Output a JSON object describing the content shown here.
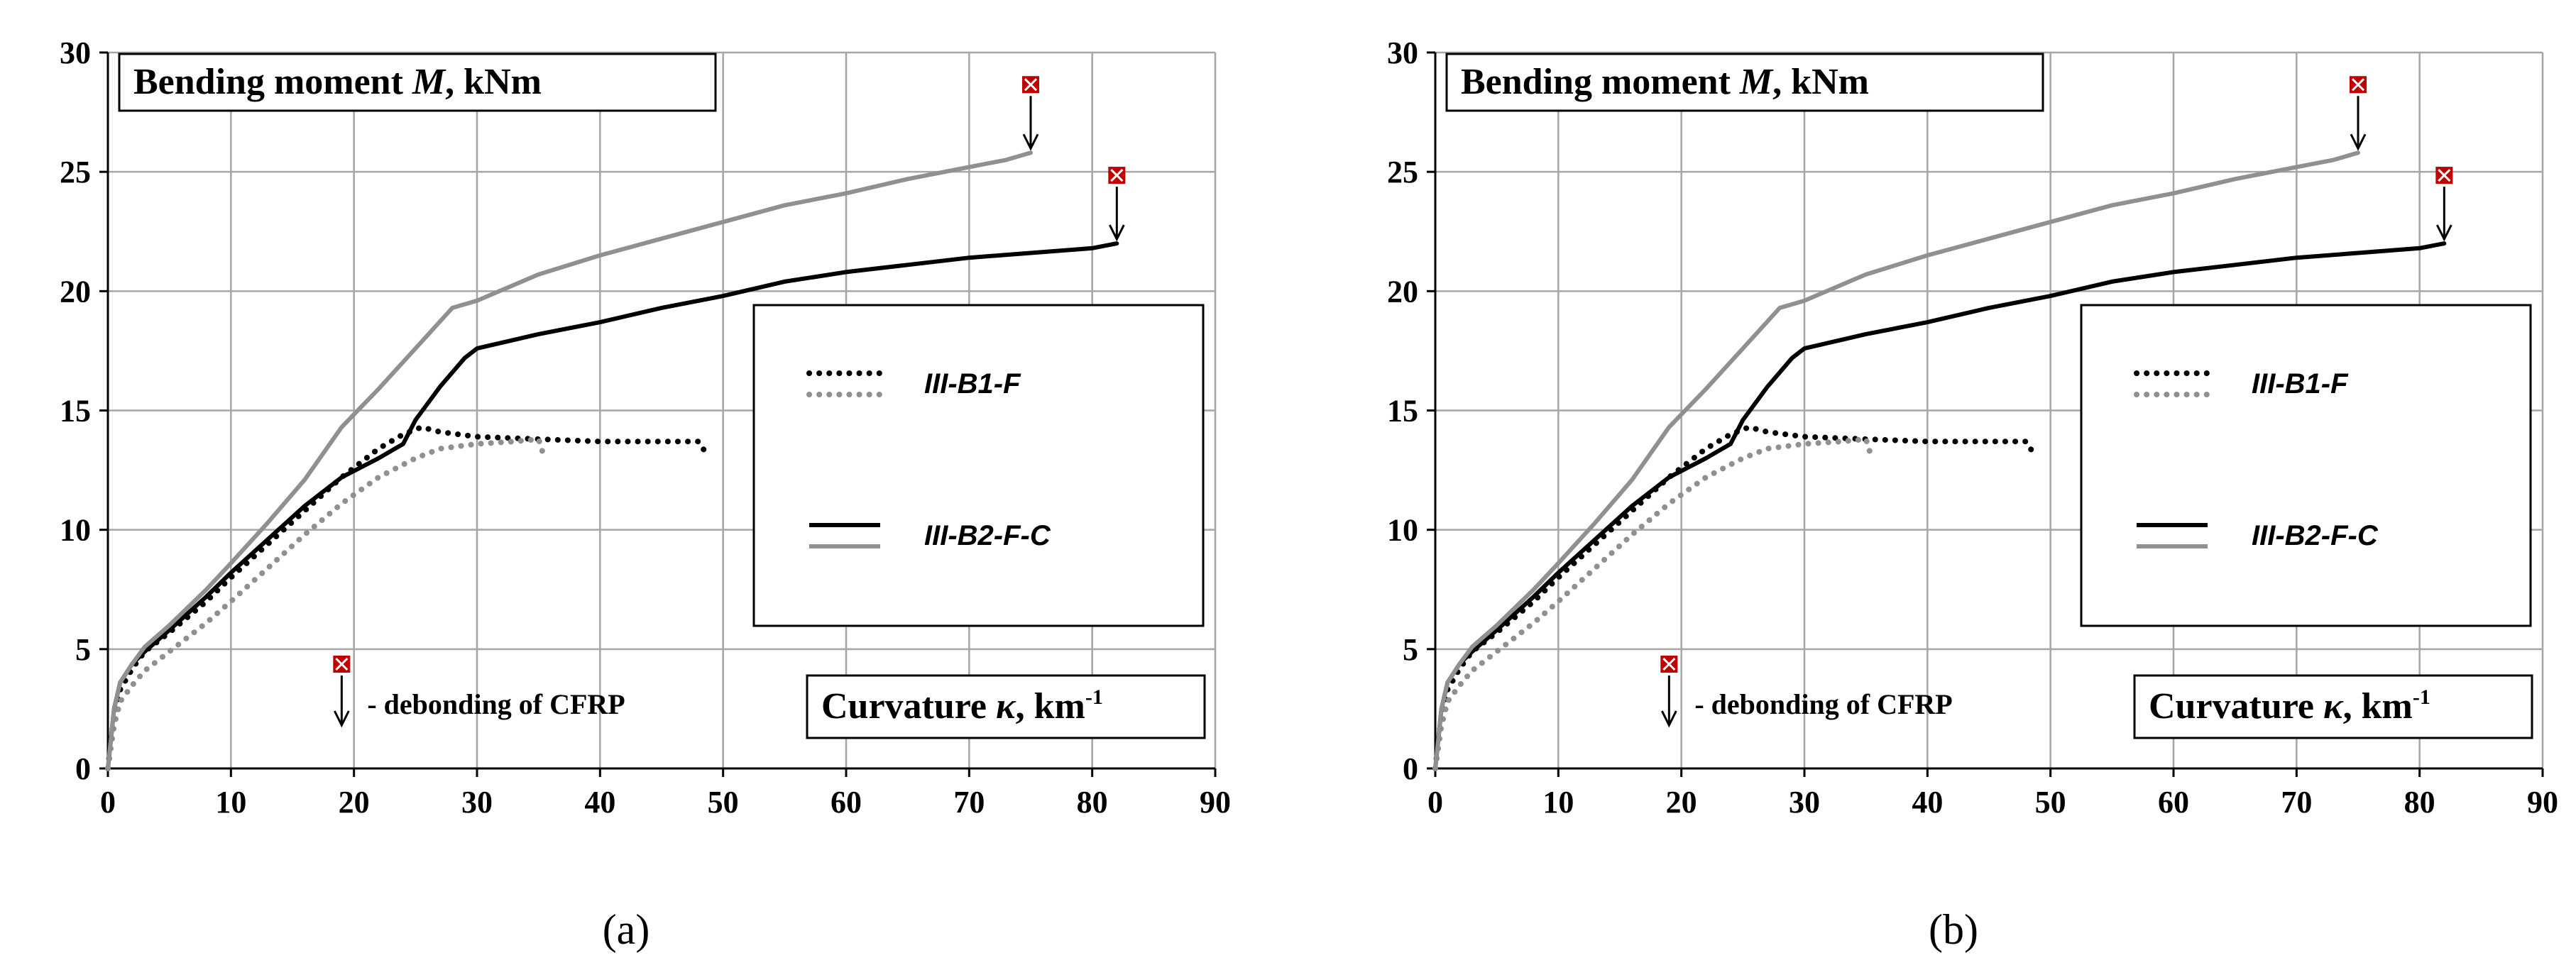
{
  "colors": {
    "black_series": "#000000",
    "gray_series": "#909090",
    "grid": "#a6a6a6",
    "failure_marker": "#c00000"
  },
  "chart_data": [
    {
      "panel": "(a)",
      "type": "line",
      "ylabel": "Bending moment M, kNm",
      "ylabel_parts": {
        "pre": "Bending moment ",
        "var": "M",
        "post": ", kNm"
      },
      "xlabel": "Curvature κ, km-1",
      "xlabel_parts": {
        "pre": "Curvature ",
        "var": "κ",
        "post": ", km",
        "sup": "-1"
      },
      "xlim": [
        0,
        90
      ],
      "ylim": [
        0,
        30
      ],
      "xticks": [
        "0",
        "10",
        "20",
        "30",
        "40",
        "50",
        "60",
        "70",
        "80",
        "90"
      ],
      "yticks": [
        "0",
        "5",
        "10",
        "15",
        "20",
        "25",
        "30"
      ],
      "grid": true,
      "legend_position": "center-right",
      "legend": [
        {
          "label": "III-B1-F",
          "style": "dotted"
        },
        {
          "label": "III-B2-F-C",
          "style": "solid"
        }
      ],
      "annotation": "- debonding of CFRP",
      "series": [
        {
          "color": "#000000",
          "style": "dotted",
          "x": [
            0,
            0.5,
            1,
            2,
            3,
            5,
            8,
            10,
            13,
            16,
            19,
            22,
            24,
            25.5,
            27,
            30,
            35,
            40,
            45,
            48,
            48.5
          ],
          "y": [
            0,
            2.2,
            3.3,
            4.2,
            4.9,
            5.7,
            7.0,
            8.0,
            9.4,
            10.8,
            12.2,
            13.4,
            14.0,
            14.3,
            14.1,
            13.9,
            13.8,
            13.7,
            13.7,
            13.7,
            13.3
          ]
        },
        {
          "color": "#909090",
          "style": "dotted",
          "x": [
            0,
            0.5,
            1,
            2,
            3,
            5,
            8,
            10,
            13,
            16,
            19,
            22,
            25,
            27,
            30,
            33,
            35,
            35.3
          ],
          "y": [
            0,
            1.8,
            2.8,
            3.5,
            4.1,
            4.9,
            6.1,
            7.0,
            8.4,
            9.8,
            11.1,
            12.2,
            13.0,
            13.4,
            13.6,
            13.7,
            13.8,
            13.3
          ]
        },
        {
          "color": "#000000",
          "style": "solid",
          "x": [
            0,
            0.5,
            1,
            2,
            3,
            5,
            8,
            10,
            13,
            16,
            19,
            22,
            24,
            25,
            27,
            29,
            30,
            35,
            40,
            45,
            50,
            55,
            60,
            65,
            70,
            75,
            80,
            82
          ],
          "y": [
            0,
            2.5,
            3.6,
            4.4,
            4.9,
            5.8,
            7.2,
            8.2,
            9.6,
            11.0,
            12.2,
            13.0,
            13.6,
            14.6,
            16.0,
            17.2,
            17.6,
            18.2,
            18.7,
            19.3,
            19.8,
            20.4,
            20.8,
            21.1,
            21.4,
            21.6,
            21.8,
            22.0
          ]
        },
        {
          "color": "#909090",
          "style": "solid",
          "x": [
            0,
            0.5,
            1,
            2,
            3,
            5,
            8,
            10,
            13,
            16,
            19,
            22,
            25,
            28,
            30,
            35,
            40,
            45,
            50,
            55,
            60,
            65,
            70,
            73,
            75
          ],
          "y": [
            0,
            2.5,
            3.6,
            4.4,
            5.1,
            6.0,
            7.5,
            8.6,
            10.3,
            12.1,
            14.3,
            15.9,
            17.6,
            19.3,
            19.6,
            20.7,
            21.5,
            22.2,
            22.9,
            23.6,
            24.1,
            24.7,
            25.2,
            25.5,
            25.8
          ]
        }
      ],
      "failure_markers": [
        {
          "x": 75,
          "y": 25.8
        },
        {
          "x": 82,
          "y": 22.0
        }
      ]
    },
    {
      "panel": "(b)",
      "type": "line",
      "ylabel": "Bending moment M, kNm",
      "ylabel_parts": {
        "pre": "Bending moment ",
        "var": "M",
        "post": ", kNm"
      },
      "xlabel": "Curvature κ, km-1",
      "xlabel_parts": {
        "pre": "Curvature ",
        "var": "κ",
        "post": ", km",
        "sup": "-1"
      },
      "xlim": [
        0,
        90
      ],
      "ylim": [
        0,
        30
      ],
      "xticks": [
        "0",
        "10",
        "20",
        "30",
        "40",
        "50",
        "60",
        "70",
        "80",
        "90"
      ],
      "yticks": [
        "0",
        "5",
        "10",
        "15",
        "20",
        "25",
        "30"
      ],
      "grid": true,
      "legend_position": "center-right",
      "legend": [
        {
          "label": "III-B1-F",
          "style": "dotted"
        },
        {
          "label": "III-B2-F-C",
          "style": "solid"
        }
      ],
      "annotation": "- debonding of CFRP",
      "series": [
        {
          "color": "#000000",
          "style": "dotted",
          "x": [
            0,
            0.5,
            1,
            2,
            3,
            5,
            8,
            10,
            13,
            16,
            19,
            22,
            24,
            25.5,
            27,
            30,
            35,
            40,
            45,
            48,
            48.5
          ],
          "y": [
            0,
            2.2,
            3.3,
            4.2,
            4.9,
            5.7,
            7.0,
            8.0,
            9.4,
            10.8,
            12.2,
            13.4,
            14.0,
            14.3,
            14.1,
            13.9,
            13.8,
            13.7,
            13.7,
            13.7,
            13.3
          ]
        },
        {
          "color": "#909090",
          "style": "dotted",
          "x": [
            0,
            0.5,
            1,
            2,
            3,
            5,
            8,
            10,
            13,
            16,
            19,
            22,
            25,
            27,
            30,
            33,
            35,
            35.3
          ],
          "y": [
            0,
            1.8,
            2.8,
            3.5,
            4.1,
            4.9,
            6.1,
            7.0,
            8.4,
            9.8,
            11.1,
            12.2,
            13.0,
            13.4,
            13.6,
            13.7,
            13.8,
            13.3
          ]
        },
        {
          "color": "#000000",
          "style": "solid",
          "x": [
            0,
            0.5,
            1,
            2,
            3,
            5,
            8,
            10,
            13,
            16,
            19,
            22,
            24,
            25,
            27,
            29,
            30,
            35,
            40,
            45,
            50,
            55,
            60,
            65,
            70,
            75,
            80,
            82
          ],
          "y": [
            0,
            2.5,
            3.6,
            4.4,
            4.9,
            5.8,
            7.2,
            8.2,
            9.6,
            11.0,
            12.2,
            13.0,
            13.6,
            14.6,
            16.0,
            17.2,
            17.6,
            18.2,
            18.7,
            19.3,
            19.8,
            20.4,
            20.8,
            21.1,
            21.4,
            21.6,
            21.8,
            22.0
          ]
        },
        {
          "color": "#909090",
          "style": "solid",
          "x": [
            0,
            0.5,
            1,
            2,
            3,
            5,
            8,
            10,
            13,
            16,
            19,
            22,
            25,
            28,
            30,
            35,
            40,
            45,
            50,
            55,
            60,
            65,
            70,
            73,
            75
          ],
          "y": [
            0,
            2.5,
            3.6,
            4.4,
            5.1,
            6.0,
            7.5,
            8.6,
            10.3,
            12.1,
            14.3,
            15.9,
            17.6,
            19.3,
            19.6,
            20.7,
            21.5,
            22.2,
            22.9,
            23.6,
            24.1,
            24.7,
            25.2,
            25.5,
            25.8
          ]
        }
      ],
      "failure_markers": [
        {
          "x": 75,
          "y": 25.8
        },
        {
          "x": 82,
          "y": 22.0
        }
      ]
    }
  ]
}
